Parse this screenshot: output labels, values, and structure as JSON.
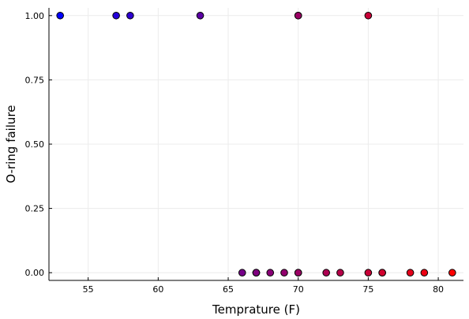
{
  "chart_data": {
    "type": "scatter",
    "title": "",
    "xlabel": "Temprature (F)",
    "ylabel": "O-ring failure",
    "xlim": [
      52.2,
      81.8
    ],
    "ylim": [
      -0.03,
      1.03
    ],
    "xticks": [
      55,
      60,
      65,
      70,
      75,
      80
    ],
    "yticks": [
      0.0,
      0.25,
      0.5,
      0.75,
      1.0
    ],
    "ytick_labels": [
      "0.00",
      "0.25",
      "0.50",
      "0.75",
      "1.00"
    ],
    "xtick_labels": [
      "55",
      "60",
      "65",
      "70",
      "75",
      "80"
    ],
    "grid": true,
    "legend": "none",
    "color_gradient": {
      "low": "#0000ff",
      "high": "#ff0000",
      "by": "x"
    },
    "series": [
      {
        "x": [
          53,
          57,
          58,
          63,
          70,
          70,
          75,
          66,
          67,
          67,
          67,
          68,
          69,
          70,
          70,
          72,
          73,
          75,
          76,
          76,
          78,
          79,
          81
        ],
        "y": [
          1,
          1,
          1,
          1,
          1,
          1,
          1,
          0,
          0,
          0,
          0,
          0,
          0,
          0,
          0,
          0,
          0,
          0,
          0,
          0,
          0,
          0,
          0
        ]
      }
    ]
  }
}
